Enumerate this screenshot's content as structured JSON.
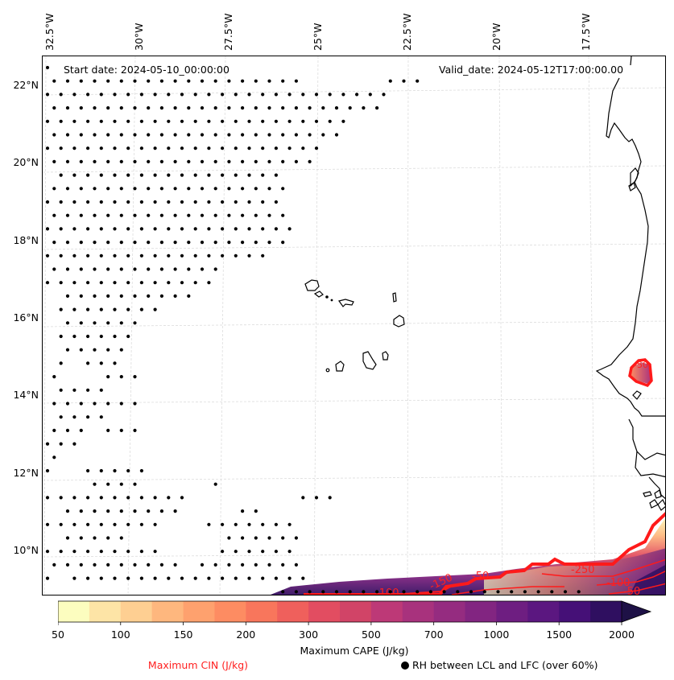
{
  "figure": {
    "start_date_label": "Start date: 2024-05-10_00:00:00",
    "valid_date_label": "Valid_date: 2024-05-12T17:00:00.00"
  },
  "axes": {
    "longitude_labels": [
      "32.5°W",
      "30°W",
      "27.5°W",
      "25°W",
      "22.5°W",
      "20°W",
      "17.5°W"
    ],
    "latitude_labels": [
      "22°N",
      "20°N",
      "18°N",
      "16°N",
      "14°N",
      "12°N",
      "10°N"
    ]
  },
  "colorbar": {
    "title": "Maximum CAPE (J/kg)",
    "levels": [
      50,
      75,
      100,
      125,
      150,
      175,
      200,
      250,
      300,
      400,
      500,
      600,
      700,
      850,
      1000,
      1250,
      1500,
      1750,
      2000
    ],
    "tick_labels": [
      "50",
      "100",
      "150",
      "200",
      "300",
      "500",
      "700",
      "1000",
      "1500",
      "2000"
    ],
    "colors": [
      "#fcfdbf",
      "#fde4a6",
      "#fecf92",
      "#feb77e",
      "#fea16e",
      "#fd8c62",
      "#f8765c",
      "#ef605c",
      "#e24d61",
      "#d14467",
      "#bd3977",
      "#a8327d",
      "#952c80",
      "#822581",
      "#6e1e81",
      "#5b1780",
      "#451077",
      "#2f0f60",
      "#1e1146"
    ],
    "extend": "max"
  },
  "legend": {
    "cin_label": "Maximum CIN (J/kg)",
    "cin_color": "#ff2020",
    "rh_label": "RH between LCL and LFC (over 60%)"
  },
  "cin_contour_labels": [
    "-50",
    "-100",
    "-150",
    "-250",
    "-100",
    "-50",
    "-50"
  ],
  "chart_data": {
    "type": "heatmap",
    "title": "",
    "fields": [
      {
        "name": "Maximum CAPE",
        "units": "J/kg",
        "display": "filled contours",
        "region": "southeast corner near 9-11°N, 17-15°W and small patch near 14.6°N 15.5°W"
      },
      {
        "name": "Maximum CIN",
        "units": "J/kg",
        "display": "red contour lines",
        "contour_values": [
          -250,
          -150,
          -100,
          -50
        ]
      },
      {
        "name": "RH between LCL and LFC over 60%",
        "display": "stippling dots",
        "region": "western and southern parts of domain"
      }
    ],
    "x_extent": [
      "32.5°W",
      "15.5°W"
    ],
    "y_extent": [
      "8.8°N",
      "22.8°N"
    ],
    "grid": true
  }
}
